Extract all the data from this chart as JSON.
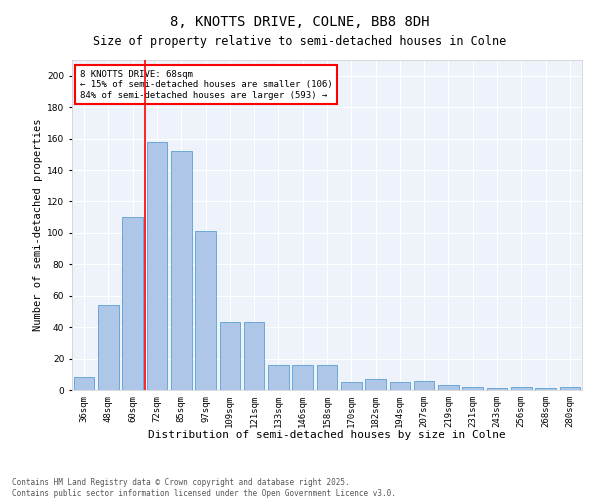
{
  "title": "8, KNOTTS DRIVE, COLNE, BB8 8DH",
  "subtitle": "Size of property relative to semi-detached houses in Colne",
  "xlabel": "Distribution of semi-detached houses by size in Colne",
  "ylabel": "Number of semi-detached properties",
  "categories": [
    "36sqm",
    "48sqm",
    "60sqm",
    "72sqm",
    "85sqm",
    "97sqm",
    "109sqm",
    "121sqm",
    "133sqm",
    "146sqm",
    "158sqm",
    "170sqm",
    "182sqm",
    "194sqm",
    "207sqm",
    "219sqm",
    "231sqm",
    "243sqm",
    "256sqm",
    "268sqm",
    "280sqm"
  ],
  "values": [
    8,
    54,
    110,
    158,
    152,
    101,
    43,
    43,
    16,
    16,
    16,
    5,
    7,
    5,
    6,
    3,
    2,
    1,
    2,
    1,
    2
  ],
  "bar_color": "#aec6e8",
  "bar_edge_color": "#5a9fd4",
  "vline_color": "red",
  "vline_x": 2.5,
  "annotation_text": "8 KNOTTS DRIVE: 68sqm\n← 15% of semi-detached houses are smaller (106)\n84% of semi-detached houses are larger (593) →",
  "annotation_box_color": "red",
  "ylim": [
    0,
    210
  ],
  "yticks": [
    0,
    20,
    40,
    60,
    80,
    100,
    120,
    140,
    160,
    180,
    200
  ],
  "bg_color": "#eef2fa",
  "footer": "Contains HM Land Registry data © Crown copyright and database right 2025.\nContains public sector information licensed under the Open Government Licence v3.0.",
  "title_fontsize": 10,
  "subtitle_fontsize": 8.5,
  "xlabel_fontsize": 8,
  "ylabel_fontsize": 7.5,
  "tick_fontsize": 6.5,
  "annotation_fontsize": 6.5,
  "footer_fontsize": 5.5
}
